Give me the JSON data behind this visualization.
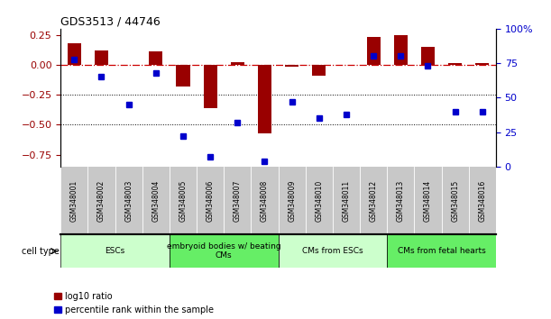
{
  "title": "GDS3513 / 44746",
  "samples": [
    "GSM348001",
    "GSM348002",
    "GSM348003",
    "GSM348004",
    "GSM348005",
    "GSM348006",
    "GSM348007",
    "GSM348008",
    "GSM348009",
    "GSM348010",
    "GSM348011",
    "GSM348012",
    "GSM348013",
    "GSM348014",
    "GSM348015",
    "GSM348016"
  ],
  "log10_ratio": [
    0.18,
    0.12,
    0.0,
    0.11,
    -0.18,
    -0.36,
    0.02,
    -0.57,
    -0.02,
    -0.09,
    0.0,
    0.23,
    0.25,
    0.15,
    0.01,
    0.01
  ],
  "percentile_rank": [
    78,
    65,
    45,
    68,
    22,
    7,
    32,
    4,
    47,
    35,
    38,
    80,
    80,
    73,
    40,
    40
  ],
  "cell_type_groups": [
    {
      "label": "ESCs",
      "start": 0,
      "end": 4,
      "color": "#ccffcc"
    },
    {
      "label": "embryoid bodies w/ beating\nCMs",
      "start": 4,
      "end": 8,
      "color": "#66ee66"
    },
    {
      "label": "CMs from ESCs",
      "start": 8,
      "end": 12,
      "color": "#ccffcc"
    },
    {
      "label": "CMs from fetal hearts",
      "start": 12,
      "end": 16,
      "color": "#66ee66"
    }
  ],
  "bar_color": "#990000",
  "dot_color": "#0000CC",
  "dashed_line_color": "#CC0000",
  "left_ylim": [
    -0.85,
    0.3
  ],
  "right_ylim": [
    0,
    100
  ],
  "left_yticks": [
    -0.75,
    -0.5,
    -0.25,
    0.0,
    0.25
  ],
  "right_yticks": [
    0,
    25,
    50,
    75,
    100
  ],
  "right_yticklabels": [
    "0",
    "25",
    "50",
    "75",
    "100%"
  ],
  "hline_dotted": [
    -0.25,
    -0.5
  ],
  "sample_area_color": "#c8c8c8",
  "cell_type_label": "cell type",
  "legend_labels": [
    "log10 ratio",
    "percentile rank within the sample"
  ]
}
